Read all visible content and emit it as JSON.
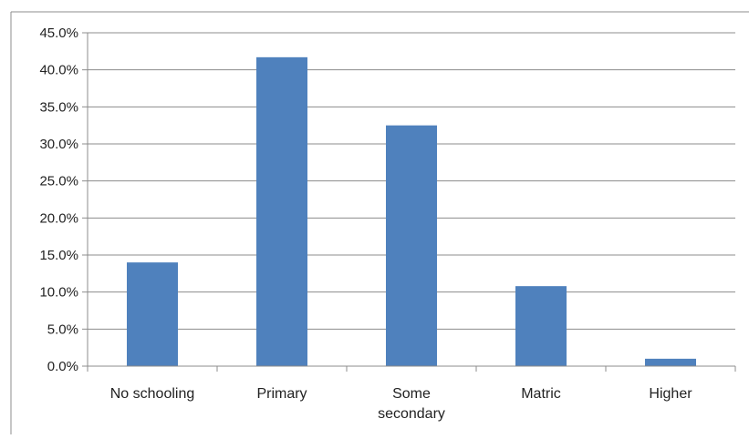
{
  "chart_data": {
    "type": "bar",
    "categories": [
      "No schooling",
      "Primary",
      "Some secondary",
      "Matric",
      "Higher"
    ],
    "category_lines": [
      [
        "No schooling"
      ],
      [
        "Primary"
      ],
      [
        "Some",
        "secondary"
      ],
      [
        "Matric"
      ],
      [
        "Higher"
      ]
    ],
    "values": [
      14.0,
      41.7,
      32.5,
      10.8,
      1.0
    ],
    "ylim": [
      0,
      45
    ],
    "yticks": [
      0,
      5,
      10,
      15,
      20,
      25,
      30,
      35,
      40,
      45
    ],
    "ytick_labels": [
      "0.0%",
      "5.0%",
      "10.0%",
      "15.0%",
      "20.0%",
      "25.0%",
      "30.0%",
      "35.0%",
      "40.0%",
      "45.0%"
    ],
    "grid": true,
    "legend": "none",
    "colors": {
      "bar": "#4f81bd",
      "grid": "#8c8c8c",
      "axis": "#8c8c8c",
      "frame": "#8c8c8c"
    }
  }
}
